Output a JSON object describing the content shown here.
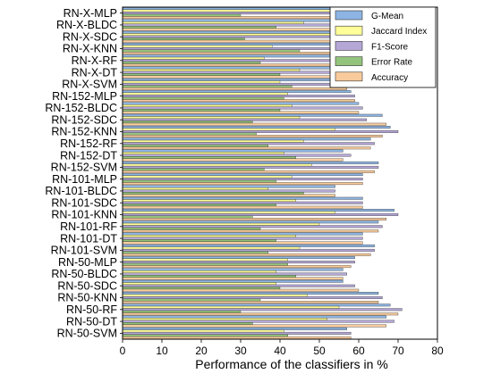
{
  "chart_data": {
    "type": "bar",
    "orientation": "horizontal",
    "xlabel": "Performance of the classifiers in %",
    "ylabel": "",
    "title": "",
    "xlim": [
      0,
      80
    ],
    "xticks": [
      "0",
      "10",
      "20",
      "30",
      "40",
      "50",
      "60",
      "70",
      "80"
    ],
    "grid": false,
    "legend_position": "top-right",
    "categories": [
      "RN-X-MLP",
      "RN-X-BLDC",
      "RN-X-SDC",
      "RN-X-KNN",
      "RN-X-RF",
      "RN-X-DT",
      "RN-X-SVM",
      "RN-152-MLP",
      "RN-152-BLDC",
      "RN-152-SDC",
      "RN-152-KNN",
      "RN-152-RF",
      "RN-152-DT",
      "RN-152-SVM",
      "RN-101-MLP",
      "RN-101-BLDC",
      "RN-101-SDC",
      "RN-101-KNN",
      "RN-101-RF",
      "RN-101-DT",
      "RN-101-SVM",
      "RN-50-MLP",
      "RN-50-BLDC",
      "RN-50-SDC",
      "RN-50-KNN",
      "RN-50-RF",
      "RN-50-DT",
      "RN-50-SVM"
    ],
    "series": [
      {
        "name": "G-Mean",
        "color": "#8db4e2",
        "values": [
          68,
          61,
          69,
          55,
          65,
          60,
          57,
          58,
          60,
          66,
          68,
          63,
          56,
          65,
          61,
          54,
          61,
          69,
          65,
          61,
          64,
          59,
          56,
          56,
          65,
          68,
          67,
          57
        ]
      },
      {
        "name": "Jaccard Index",
        "color": "#ffff99",
        "values": [
          57,
          46,
          54,
          38,
          36,
          45,
          40,
          42,
          43,
          45,
          54,
          46,
          41,
          48,
          43,
          37,
          44,
          54,
          50,
          44,
          45,
          42,
          39,
          39,
          47,
          55,
          52,
          41
        ]
      },
      {
        "name": "F1-Score",
        "color": "#b4a7d6",
        "values": [
          73,
          63,
          70,
          55,
          65,
          62,
          57,
          59,
          61,
          62,
          70,
          64,
          58,
          65,
          61,
          54,
          61,
          70,
          66,
          61,
          64,
          59,
          57,
          59,
          66,
          71,
          69,
          58
        ]
      },
      {
        "name": "Error Rate",
        "color": "#93c47d",
        "values": [
          30,
          39,
          31,
          45,
          35,
          40,
          43,
          41,
          40,
          33,
          34,
          37,
          44,
          36,
          39,
          46,
          39,
          33,
          35,
          39,
          37,
          42,
          44,
          40,
          35,
          30,
          33,
          42
        ]
      },
      {
        "name": "Accuracy",
        "color": "#f9cb9c",
        "values": [
          70,
          61,
          69,
          55,
          65,
          60,
          57,
          59,
          60,
          67,
          66,
          63,
          56,
          64,
          61,
          54,
          61,
          67,
          65,
          61,
          63,
          58,
          56,
          60,
          65,
          70,
          67,
          58
        ]
      }
    ]
  }
}
